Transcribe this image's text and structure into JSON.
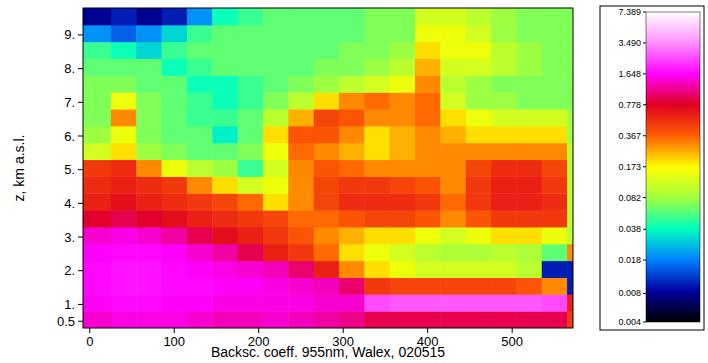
{
  "chart_data": {
    "type": "heatmap",
    "xlabel": "Backsc. coeff. 955nm, Walex, 020515",
    "ylabel": "z, km a.s.l.",
    "xlim": [
      -8,
      572
    ],
    "ylim": [
      0.3,
      9.8
    ],
    "xticks": [
      0,
      100,
      200,
      300,
      400,
      500
    ],
    "yticks": [
      0.5,
      {
        "value": 1,
        "label": "1."
      },
      {
        "value": 2,
        "label": "2."
      },
      {
        "value": 3,
        "label": "3."
      },
      {
        "value": 4,
        "label": "4."
      },
      {
        "value": 5,
        "label": "5."
      },
      {
        "value": 6,
        "label": "6."
      },
      {
        "value": 7,
        "label": "7."
      },
      {
        "value": 8,
        "label": "8."
      },
      {
        "value": 9,
        "label": "9."
      }
    ],
    "x_bins": [
      -8,
      25,
      55,
      85,
      115,
      145,
      175,
      205,
      235,
      265,
      295,
      325,
      355,
      385,
      415,
      445,
      475,
      505,
      535,
      565,
      572
    ],
    "y_bins": [
      0.3,
      0.8,
      1.3,
      1.8,
      2.3,
      2.8,
      3.3,
      3.8,
      4.3,
      4.8,
      5.3,
      5.8,
      6.3,
      6.8,
      7.3,
      7.8,
      8.3,
      8.8,
      9.3,
      9.8
    ],
    "values": [
      [
        1.4,
        1.5,
        1.5,
        1.5,
        1.4,
        1.3,
        1.3,
        1.4,
        1.3,
        1.2,
        1.1,
        0.9,
        0.9,
        0.9,
        0.9,
        0.9,
        0.9,
        0.9,
        0.9,
        0.5
      ],
      [
        1.6,
        1.7,
        1.7,
        1.6,
        1.6,
        1.5,
        1.5,
        1.5,
        1.5,
        1.4,
        1.4,
        2.4,
        2.6,
        2.6,
        2.6,
        2.6,
        2.6,
        2.6,
        2.4,
        0.6
      ],
      [
        1.7,
        1.8,
        1.8,
        1.7,
        1.7,
        1.6,
        1.6,
        1.5,
        1.4,
        1.3,
        1.0,
        0.5,
        0.45,
        0.45,
        0.45,
        0.45,
        0.45,
        0.4,
        0.3,
        0.01
      ],
      [
        1.7,
        1.8,
        1.8,
        1.7,
        1.6,
        1.5,
        1.4,
        1.3,
        1.0,
        0.6,
        0.3,
        0.2,
        0.15,
        0.12,
        0.12,
        0.12,
        0.12,
        0.1,
        0.01,
        0.01
      ],
      [
        1.6,
        1.7,
        1.7,
        1.6,
        1.4,
        1.2,
        0.9,
        0.6,
        0.5,
        0.35,
        0.2,
        0.15,
        0.12,
        0.1,
        0.09,
        0.09,
        0.1,
        0.09,
        0.06,
        0.3
      ],
      [
        1.4,
        1.5,
        1.4,
        1.2,
        0.9,
        0.7,
        0.6,
        0.5,
        0.4,
        0.3,
        0.25,
        0.2,
        0.2,
        0.15,
        0.12,
        0.15,
        0.2,
        0.2,
        0.15,
        0.1
      ],
      [
        0.8,
        0.9,
        0.8,
        0.7,
        0.6,
        0.55,
        0.5,
        0.45,
        0.35,
        0.35,
        0.4,
        0.45,
        0.45,
        0.4,
        0.3,
        0.4,
        0.5,
        0.5,
        0.5,
        0.1
      ],
      [
        0.6,
        0.7,
        0.6,
        0.55,
        0.5,
        0.45,
        0.35,
        0.2,
        0.3,
        0.45,
        0.55,
        0.55,
        0.55,
        0.5,
        0.35,
        0.5,
        0.6,
        0.6,
        0.55,
        0.1
      ],
      [
        0.55,
        0.6,
        0.55,
        0.5,
        0.3,
        0.2,
        0.12,
        0.15,
        0.3,
        0.45,
        0.5,
        0.5,
        0.45,
        0.4,
        0.3,
        0.5,
        0.6,
        0.6,
        0.5,
        0.1
      ],
      [
        0.5,
        0.55,
        0.3,
        0.15,
        0.1,
        0.08,
        0.05,
        0.12,
        0.3,
        0.4,
        0.35,
        0.3,
        0.3,
        0.3,
        0.3,
        0.45,
        0.55,
        0.55,
        0.45,
        0.1
      ],
      [
        0.12,
        0.2,
        0.08,
        0.07,
        0.06,
        0.06,
        0.07,
        0.15,
        0.35,
        0.3,
        0.25,
        0.2,
        0.25,
        0.3,
        0.3,
        0.3,
        0.3,
        0.3,
        0.3,
        0.1
      ],
      [
        0.08,
        0.15,
        0.07,
        0.06,
        0.06,
        0.035,
        0.06,
        0.2,
        0.4,
        0.4,
        0.3,
        0.2,
        0.25,
        0.3,
        0.25,
        0.2,
        0.2,
        0.2,
        0.2,
        0.08
      ],
      [
        0.07,
        0.3,
        0.07,
        0.06,
        0.05,
        0.05,
        0.06,
        0.1,
        0.25,
        0.45,
        0.4,
        0.3,
        0.3,
        0.35,
        0.2,
        0.15,
        0.12,
        0.12,
        0.12,
        0.08
      ],
      [
        0.07,
        0.15,
        0.07,
        0.06,
        0.05,
        0.04,
        0.05,
        0.07,
        0.1,
        0.2,
        0.3,
        0.35,
        0.3,
        0.35,
        0.12,
        0.08,
        0.08,
        0.07,
        0.07,
        0.07
      ],
      [
        0.07,
        0.07,
        0.06,
        0.06,
        0.04,
        0.04,
        0.05,
        0.06,
        0.07,
        0.08,
        0.1,
        0.12,
        0.15,
        0.3,
        0.1,
        0.08,
        0.07,
        0.07,
        0.07,
        0.07
      ],
      [
        0.06,
        0.06,
        0.06,
        0.04,
        0.05,
        0.06,
        0.06,
        0.06,
        0.06,
        0.07,
        0.07,
        0.08,
        0.1,
        0.25,
        0.12,
        0.12,
        0.1,
        0.08,
        0.07,
        0.07
      ],
      [
        0.05,
        0.04,
        0.03,
        0.05,
        0.06,
        0.06,
        0.06,
        0.06,
        0.06,
        0.06,
        0.07,
        0.07,
        0.08,
        0.2,
        0.15,
        0.15,
        0.1,
        0.08,
        0.07,
        0.07
      ],
      [
        0.02,
        0.015,
        0.02,
        0.03,
        0.05,
        0.06,
        0.06,
        0.06,
        0.06,
        0.06,
        0.06,
        0.07,
        0.07,
        0.15,
        0.15,
        0.12,
        0.08,
        0.07,
        0.07,
        0.07
      ],
      [
        0.008,
        0.01,
        0.008,
        0.01,
        0.02,
        0.04,
        0.05,
        0.06,
        0.06,
        0.06,
        0.06,
        0.07,
        0.07,
        0.12,
        0.12,
        0.1,
        0.08,
        0.07,
        0.07,
        0.07
      ]
    ],
    "colorbar": {
      "lim": [
        0.004,
        7.389
      ],
      "log": true,
      "ticks": [
        0.004,
        0.008,
        0.018,
        0.038,
        0.082,
        0.173,
        0.367,
        0.778,
        1.648,
        {
          "value": 3.49,
          "label": "3.490"
        },
        7.389
      ]
    }
  }
}
